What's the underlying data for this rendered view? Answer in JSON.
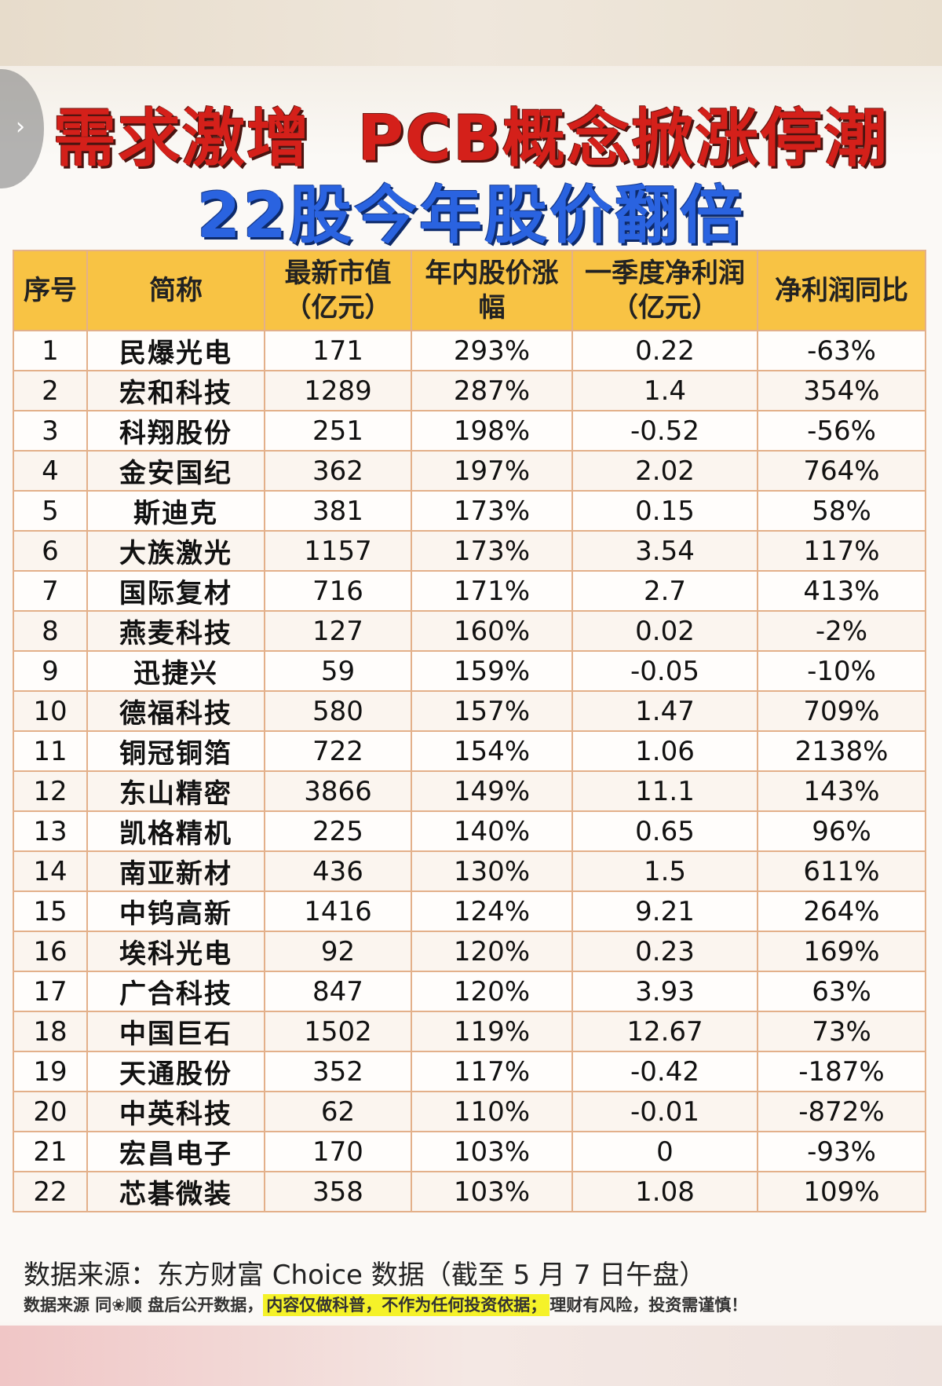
{
  "title": {
    "line1": "需求激增  PCB概念掀涨停潮",
    "line2": "22股今年股价翻倍"
  },
  "nav": {
    "chevron": "›"
  },
  "table": {
    "headers": [
      "序号",
      "简称",
      "最新市值\n（亿元）",
      "年内股价涨幅",
      "一季度净利润\n（亿元）",
      "净利润同比"
    ],
    "rows": [
      {
        "no": "1",
        "name": "民爆光电",
        "mcap": "171",
        "change": "293%",
        "profit": "0.22",
        "yoy": "-63%"
      },
      {
        "no": "2",
        "name": "宏和科技",
        "mcap": "1289",
        "change": "287%",
        "profit": "1.4",
        "yoy": "354%"
      },
      {
        "no": "3",
        "name": "科翔股份",
        "mcap": "251",
        "change": "198%",
        "profit": "-0.52",
        "yoy": "-56%"
      },
      {
        "no": "4",
        "name": "金安国纪",
        "mcap": "362",
        "change": "197%",
        "profit": "2.02",
        "yoy": "764%"
      },
      {
        "no": "5",
        "name": "斯迪克",
        "mcap": "381",
        "change": "173%",
        "profit": "0.15",
        "yoy": "58%"
      },
      {
        "no": "6",
        "name": "大族激光",
        "mcap": "1157",
        "change": "173%",
        "profit": "3.54",
        "yoy": "117%"
      },
      {
        "no": "7",
        "name": "国际复材",
        "mcap": "716",
        "change": "171%",
        "profit": "2.7",
        "yoy": "413%"
      },
      {
        "no": "8",
        "name": "燕麦科技",
        "mcap": "127",
        "change": "160%",
        "profit": "0.02",
        "yoy": "-2%"
      },
      {
        "no": "9",
        "name": "迅捷兴",
        "mcap": "59",
        "change": "159%",
        "profit": "-0.05",
        "yoy": "-10%"
      },
      {
        "no": "10",
        "name": "德福科技",
        "mcap": "580",
        "change": "157%",
        "profit": "1.47",
        "yoy": "709%"
      },
      {
        "no": "11",
        "name": "铜冠铜箔",
        "mcap": "722",
        "change": "154%",
        "profit": "1.06",
        "yoy": "2138%"
      },
      {
        "no": "12",
        "name": "东山精密",
        "mcap": "3866",
        "change": "149%",
        "profit": "11.1",
        "yoy": "143%"
      },
      {
        "no": "13",
        "name": "凯格精机",
        "mcap": "225",
        "change": "140%",
        "profit": "0.65",
        "yoy": "96%"
      },
      {
        "no": "14",
        "name": "南亚新材",
        "mcap": "436",
        "change": "130%",
        "profit": "1.5",
        "yoy": "611%"
      },
      {
        "no": "15",
        "name": "中钨高新",
        "mcap": "1416",
        "change": "124%",
        "profit": "9.21",
        "yoy": "264%"
      },
      {
        "no": "16",
        "name": "埃科光电",
        "mcap": "92",
        "change": "120%",
        "profit": "0.23",
        "yoy": "169%"
      },
      {
        "no": "17",
        "name": "广合科技",
        "mcap": "847",
        "change": "120%",
        "profit": "3.93",
        "yoy": "63%"
      },
      {
        "no": "18",
        "name": "中国巨石",
        "mcap": "1502",
        "change": "119%",
        "profit": "12.67",
        "yoy": "73%"
      },
      {
        "no": "19",
        "name": "天通股份",
        "mcap": "352",
        "change": "117%",
        "profit": "-0.42",
        "yoy": "-187%"
      },
      {
        "no": "20",
        "name": "中英科技",
        "mcap": "62",
        "change": "110%",
        "profit": "-0.01",
        "yoy": "-872%"
      },
      {
        "no": "21",
        "name": "宏昌电子",
        "mcap": "170",
        "change": "103%",
        "profit": "0",
        "yoy": "-93%"
      },
      {
        "no": "22",
        "name": "芯碁微装",
        "mcap": "358",
        "change": "103%",
        "profit": "1.08",
        "yoy": "109%"
      }
    ]
  },
  "footer": {
    "source": "数据来源：东方财富 Choice 数据（截至 5 月 7 日午盘）",
    "disclaimer_pre": "数据来源 同❀顺 盘后公开数据，",
    "disclaimer_highlight": "内容仅做科普，不作为任何投资依据；",
    "disclaimer_post": "理财有风险，投资需谨慎！"
  },
  "colors": {
    "title_red": "#d4201a",
    "title_blue": "#2a63e0",
    "header_yellow": "#f8c344",
    "name_red": "#cc1f1a",
    "change_blue": "#3a4fcf",
    "highlight_yellow": "#f5f229"
  }
}
